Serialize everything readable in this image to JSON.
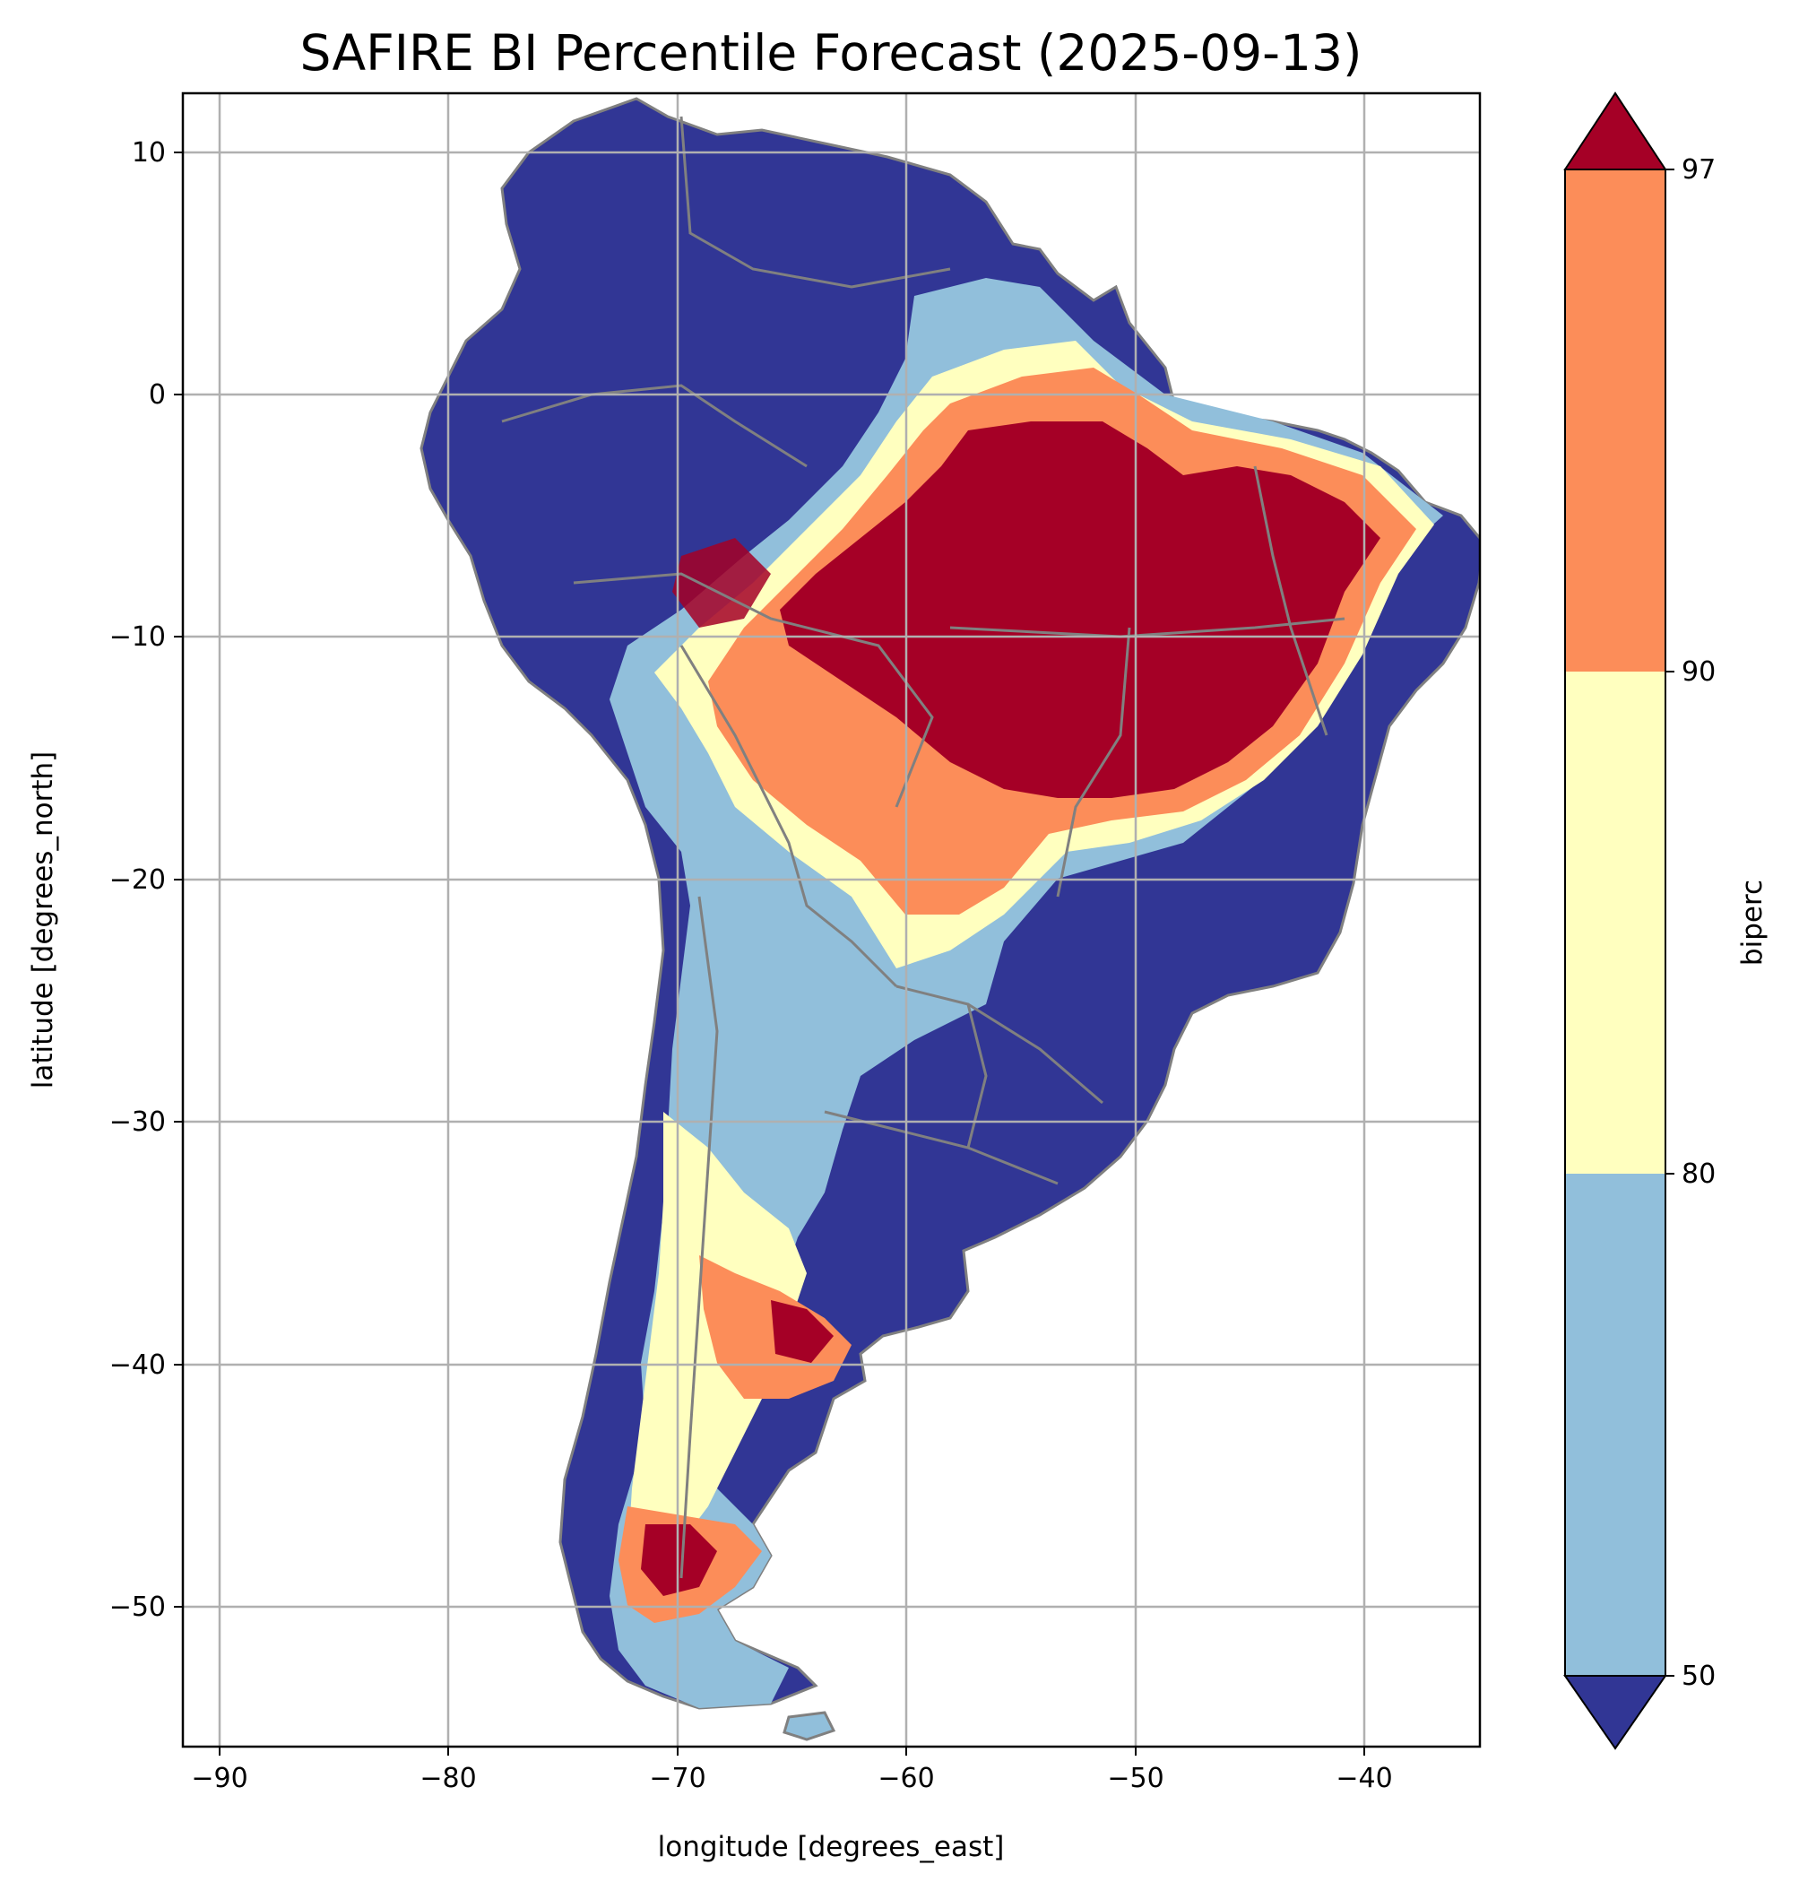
{
  "title": "SAFIRE BI Percentile Forecast (2025-09-13)",
  "axes": {
    "xlabel": "longitude [degrees_east]",
    "ylabel": "latitude [degrees_north]",
    "xlim": [
      -91.6,
      -35.0
    ],
    "ylim": [
      -55.9,
      12.4
    ],
    "xticks": [
      -90,
      -80,
      -70,
      -60,
      -50,
      -40
    ],
    "yticks": [
      10,
      0,
      -10,
      -20,
      -30,
      -40,
      -50
    ],
    "xtick_labels": [
      "−90",
      "−80",
      "−70",
      "−60",
      "−50",
      "−40"
    ],
    "ytick_labels": [
      "10",
      "0",
      "−10",
      "−20",
      "−30",
      "−40",
      "−50"
    ],
    "grid": true
  },
  "colorbar": {
    "label": "biperc",
    "ticks": [
      "50",
      "80",
      "90",
      "97"
    ],
    "bins": [
      {
        "range": "<50",
        "color": "#313695"
      },
      {
        "range": "50-80",
        "color": "#91bfdb"
      },
      {
        "range": "80-90",
        "color": "#ffffbf"
      },
      {
        "range": "90-97",
        "color": "#fc8d59"
      },
      {
        "range": ">97",
        "color": "#a50026"
      }
    ],
    "extend": "both"
  },
  "map_colors": {
    "coast_border": "#808080",
    "grid": "#b0b0b0"
  }
}
